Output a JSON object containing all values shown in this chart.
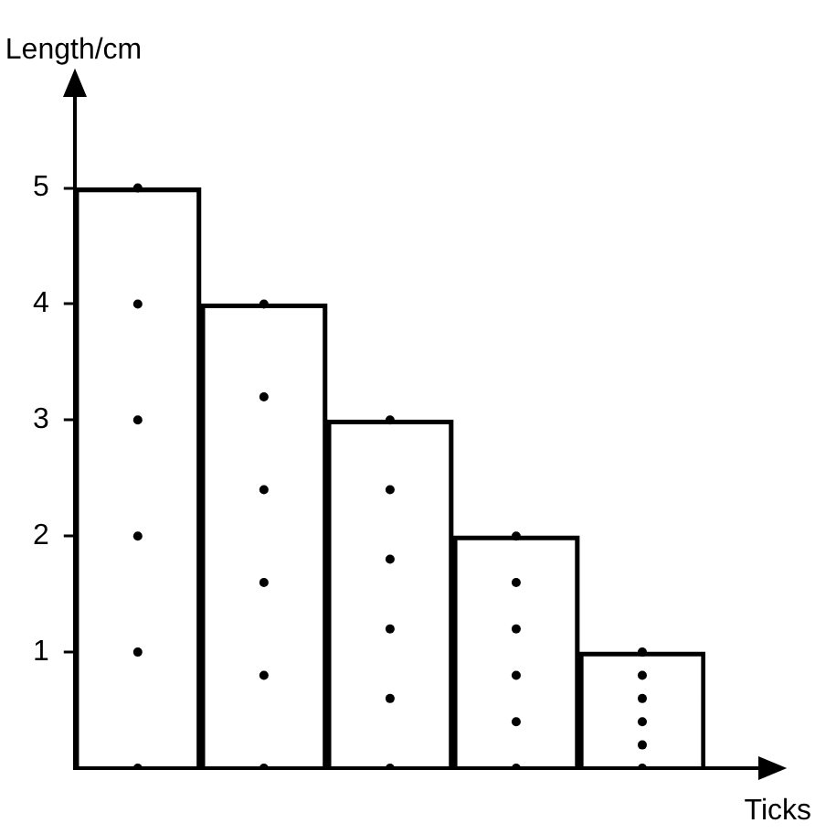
{
  "chart_data": {
    "type": "bar",
    "xlabel": "Ticks",
    "ylabel": "Length/cm",
    "categories": [
      null,
      null,
      null,
      null,
      null
    ],
    "series": [
      {
        "color": "#000000",
        "values": [
          5,
          4,
          3,
          2,
          1
        ]
      },
      {
        "type": "scatter",
        "color": "#000000",
        "values": [
          0,
          0,
          0,
          0,
          0
        ]
      },
      {
        "type": "scatter",
        "color": "#000000",
        "values": [
          1,
          0.8,
          0.6,
          0.4,
          0.2
        ]
      },
      {
        "type": "scatter",
        "color": "#000000",
        "values": [
          2,
          1.6,
          1.2,
          0.8,
          0.4
        ]
      },
      {
        "type": "scatter",
        "color": "#000000",
        "values": [
          3,
          2.4,
          1.8,
          1.2,
          0.6
        ]
      },
      {
        "type": "scatter",
        "color": "#000000",
        "values": [
          4,
          3.2,
          2.4,
          1.6,
          0.8
        ]
      },
      {
        "type": "scatter",
        "color": "#000000",
        "values": [
          5,
          4,
          3,
          2,
          1
        ]
      }
    ],
    "ylim": [
      0,
      5.8
    ],
    "yticks": [
      1,
      2,
      3,
      4,
      5
    ],
    "grid": false,
    "legend": false,
    "tick_labels": "y",
    "marker": "circle"
  }
}
